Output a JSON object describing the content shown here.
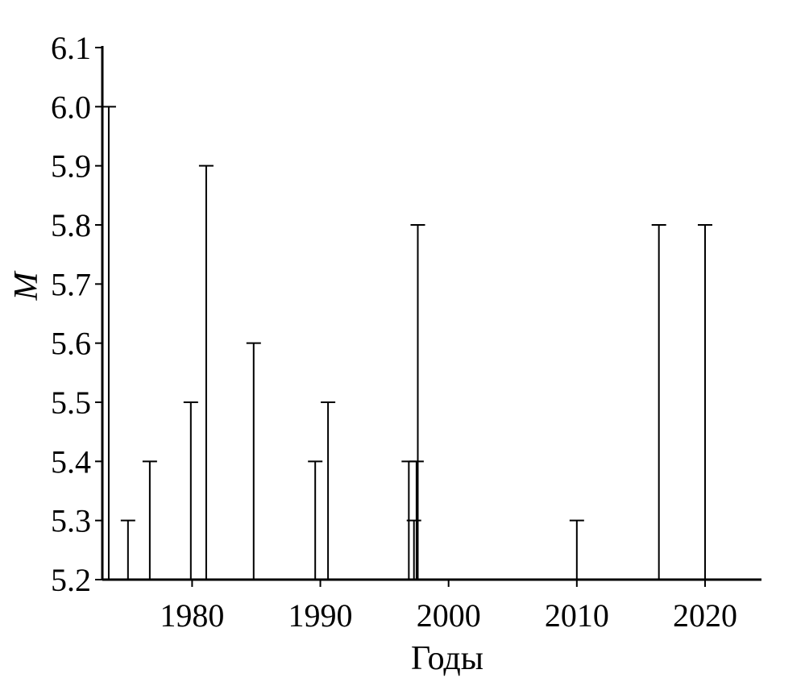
{
  "chart_data": {
    "type": "stem",
    "x_label": "Годы",
    "y_label": "M",
    "x": [
      1973.5,
      1975.0,
      1976.7,
      1979.9,
      1981.1,
      1984.8,
      1989.6,
      1990.6,
      1996.9,
      1997.3,
      1997.5,
      1997.6,
      2010.0,
      2016.4,
      2020.0
    ],
    "values": [
      6.0,
      5.3,
      5.4,
      5.5,
      5.9,
      5.6,
      5.4,
      5.5,
      5.4,
      5.3,
      5.4,
      5.8,
      5.3,
      5.8,
      5.8
    ],
    "color": "#000000",
    "xlim": [
      1973,
      2024.4
    ],
    "xticks": [
      1980,
      1990,
      2000,
      2010,
      2020
    ],
    "ylim": [
      5.2,
      6.1
    ],
    "yticks": [
      5.2,
      5.3,
      5.4,
      5.5,
      5.6,
      5.7,
      5.8,
      5.9,
      {
        "value": 6,
        "label": "6.0"
      },
      6.1
    ]
  }
}
